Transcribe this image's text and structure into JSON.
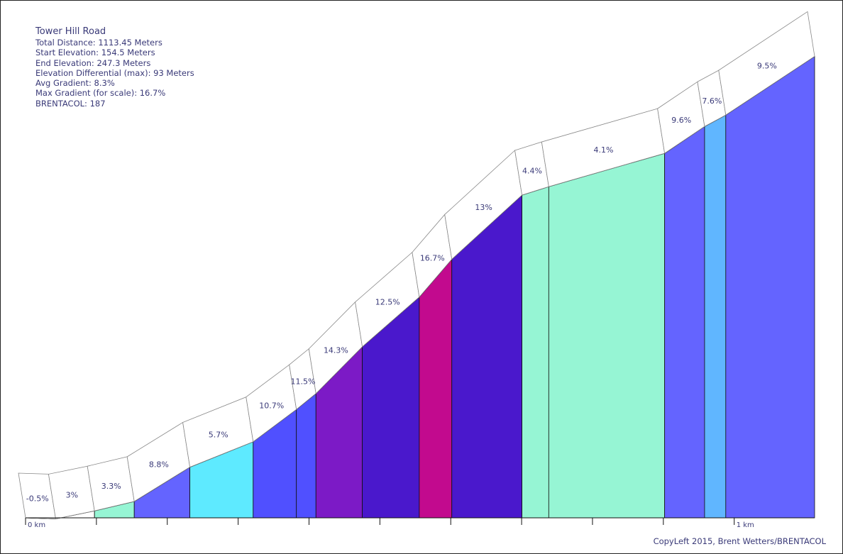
{
  "chart_data": {
    "type": "area",
    "title": "Tower Hill Road",
    "stats": [
      "Total Distance: 1113.45 Meters",
      "Start Elevation: 154.5 Meters",
      "End Elevation: 247.3 Meters",
      "Elevation Differential (max): 93 Meters",
      "Avg Gradient: 8.3%",
      "Max Gradient (for scale): 16.7%",
      "BRENTACOL: 187"
    ],
    "x_unit": "meters",
    "xlim": [
      0,
      1113.45
    ],
    "ylim": [
      154.5,
      247.5
    ],
    "x_ticks": [
      0,
      100,
      200,
      300,
      400,
      500,
      600,
      700,
      800,
      900,
      1000
    ],
    "x_tick_labels": [
      "0 km",
      "",
      "",
      "",
      "",
      "",
      "",
      "",
      "",
      "",
      "1 km"
    ],
    "segments": [
      {
        "start": 0,
        "end": 42.5,
        "gradient": "-0.5%",
        "color": "#ffffff"
      },
      {
        "start": 42.5,
        "end": 97.3,
        "gradient": "3%",
        "color": "#ffffff"
      },
      {
        "start": 97.3,
        "end": 153.4,
        "gradient": "3.3%",
        "color": "#96f5d4"
      },
      {
        "start": 153.4,
        "end": 231.9,
        "gradient": "8.8%",
        "color": "#6464ff"
      },
      {
        "start": 231.9,
        "end": 321.2,
        "gradient": "5.7%",
        "color": "#5eeaff"
      },
      {
        "start": 321.2,
        "end": 382.2,
        "gradient": "10.7%",
        "color": "#5050ff"
      },
      {
        "start": 382.2,
        "end": 409.8,
        "gradient": "11.5%",
        "color": "#5050ff"
      },
      {
        "start": 409.8,
        "end": 475.2,
        "gradient": "14.3%",
        "color": "#7c1ac6"
      },
      {
        "start": 475.2,
        "end": 555.6,
        "gradient": "12.5%",
        "color": "#4a18cc"
      },
      {
        "start": 555.6,
        "end": 601.5,
        "gradient": "16.7%",
        "color": "#c20a8e"
      },
      {
        "start": 601.5,
        "end": 700.5,
        "gradient": "13%",
        "color": "#4a18cc"
      },
      {
        "start": 700.5,
        "end": 738.3,
        "gradient": "4.4%",
        "color": "#96f5d4"
      },
      {
        "start": 738.3,
        "end": 901.8,
        "gradient": "4.1%",
        "color": "#96f5d4"
      },
      {
        "start": 901.8,
        "end": 958.2,
        "gradient": "9.6%",
        "color": "#6464ff"
      },
      {
        "start": 958.2,
        "end": 988.1,
        "gradient": "7.6%",
        "color": "#60b6ff"
      },
      {
        "start": 988.1,
        "end": 1113.45,
        "gradient": "9.5%",
        "color": "#6464ff"
      }
    ],
    "profile": [
      {
        "x": 0,
        "y": 154.5
      },
      {
        "x": 42.5,
        "y": 154.3
      },
      {
        "x": 97.3,
        "y": 155.9
      },
      {
        "x": 153.4,
        "y": 157.8
      },
      {
        "x": 231.9,
        "y": 164.7
      },
      {
        "x": 321.2,
        "y": 169.8
      },
      {
        "x": 382.2,
        "y": 176.3
      },
      {
        "x": 409.8,
        "y": 179.5
      },
      {
        "x": 475.2,
        "y": 188.9
      },
      {
        "x": 555.6,
        "y": 198.9
      },
      {
        "x": 601.5,
        "y": 206.5
      },
      {
        "x": 700.5,
        "y": 219.4
      },
      {
        "x": 738.3,
        "y": 221.1
      },
      {
        "x": 901.8,
        "y": 227.8
      },
      {
        "x": 958.2,
        "y": 233.2
      },
      {
        "x": 988.1,
        "y": 235.5
      },
      {
        "x": 1113.45,
        "y": 247.3
      }
    ]
  },
  "footer": {
    "copyleft": "CopyLeft 2015, Brent Wetters/BRENTACOL"
  }
}
